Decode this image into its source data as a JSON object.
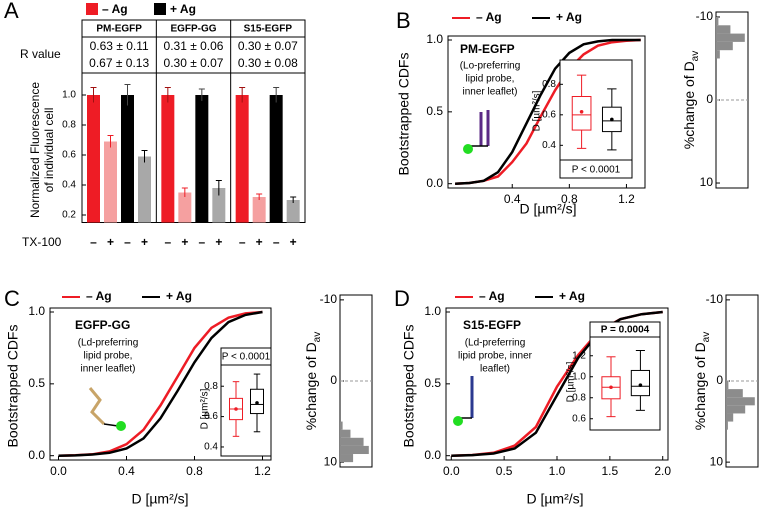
{
  "chart_data": [
    {
      "type": "bar",
      "panel": "A",
      "categories": [
        "PM-EGFP",
        "EGFP-GG",
        "S15-EGFP"
      ],
      "r_label": "R value",
      "ylabel": [
        "Normalized Fluorescence",
        "of individual cell"
      ],
      "tx_label": "TX-100",
      "tx_signs": [
        "–",
        "+"
      ],
      "ylim": [
        0.15,
        1.1
      ],
      "yticks": [
        0.2,
        0.4,
        0.6,
        0.8,
        {
          "value": 1,
          "label": "1.0"
        }
      ],
      "series": [
        {
          "name": "– Ag",
          "color": "#ee1c25",
          "tx_color": "#f5a0a0",
          "values": [
            [
              1.0,
              0.69
            ],
            [
              1.0,
              0.35
            ],
            [
              1.0,
              0.32
            ]
          ],
          "errors": [
            [
              0.05,
              0.04
            ],
            [
              0.05,
              0.03
            ],
            [
              0.05,
              0.02
            ]
          ],
          "r_values": [
            "0.63 ± 0.11",
            "0.31 ± 0.06",
            "0.30 ± 0.07"
          ]
        },
        {
          "name": "+ Ag",
          "color": "#000000",
          "tx_color": "#a8a8a8",
          "values": [
            [
              1.0,
              0.59
            ],
            [
              1.0,
              0.38
            ],
            [
              1.0,
              0.3
            ]
          ],
          "errors": [
            [
              0.07,
              0.04
            ],
            [
              0.04,
              0.05
            ],
            [
              0.05,
              0.02
            ]
          ],
          "r_values": [
            "0.67 ± 0.13",
            "0.30 ± 0.07",
            "0.30 ± 0.08"
          ]
        }
      ]
    },
    {
      "type": "line",
      "panel": "B",
      "title": "PM-EGFP",
      "annotation": [
        "(Lo-preferring",
        "lipid probe,",
        "inner leaflet)"
      ],
      "xlabel": "D [µm²/s]",
      "ylabel": "Bootstrapped CDFs",
      "xlim": [
        -0.05,
        1.33
      ],
      "xticks": [
        0.4,
        0.8,
        1.2
      ],
      "ylim": [
        -0.03,
        1.0
      ],
      "yticks": [
        {
          "value": 0,
          "label": "0.0"
        },
        0.5,
        {
          "value": 1,
          "label": "1.0"
        }
      ],
      "x": [
        0,
        0.1,
        0.2,
        0.3,
        0.4,
        0.5,
        0.6,
        0.7,
        0.8,
        0.9,
        1.0,
        1.1,
        1.2,
        1.3
      ],
      "series": [
        {
          "name": "– Ag",
          "color": "#ee1c25",
          "values": [
            0,
            0.005,
            0.02,
            0.05,
            0.15,
            0.28,
            0.47,
            0.65,
            0.8,
            0.9,
            0.96,
            0.985,
            0.995,
            1.0
          ]
        },
        {
          "name": "+ Ag",
          "color": "#000000",
          "values": [
            0,
            0.005,
            0.02,
            0.08,
            0.22,
            0.42,
            0.62,
            0.8,
            0.91,
            0.97,
            0.99,
            1.0,
            1.0,
            1.0
          ]
        }
      ],
      "inset": {
        "ylabel": "D [µm²/s]",
        "ylim": [
          0.33,
          0.92
        ],
        "yticks": [
          0.4,
          0.6,
          0.8
        ],
        "p_text": "P < 0.0001",
        "boxes": [
          {
            "color": "#ee1c25",
            "whislo": 0.38,
            "q1": 0.5,
            "med": 0.6,
            "q3": 0.72,
            "whishi": 0.86,
            "mean": 0.62
          },
          {
            "color": "#000000",
            "whislo": 0.37,
            "q1": 0.49,
            "med": 0.56,
            "q3": 0.65,
            "whishi": 0.77,
            "mean": 0.57
          }
        ]
      },
      "side": {
        "ylabel": "%change of D",
        "ylabel_sub": "av",
        "ylim": [
          -10.6,
          10.6
        ],
        "yticks": [
          -10,
          0,
          10
        ],
        "bins": [
          -10,
          -9,
          -8,
          -7,
          -6,
          -5
        ],
        "counts": [
          5,
          30,
          60,
          35,
          8
        ],
        "color": "#8c8c8c"
      }
    },
    {
      "type": "line",
      "panel": "C",
      "title": "EGFP-GG",
      "annotation": [
        "(Ld-preferring",
        "lipid probe,",
        "inner leaflet)"
      ],
      "xlabel": "D [µm²/s]",
      "ylabel": "Bootstrapped CDFs",
      "xlim": [
        -0.05,
        1.25
      ],
      "xticks": [
        {
          "value": 0,
          "label": "0.0"
        },
        0.4,
        0.8,
        1.2
      ],
      "ylim": [
        -0.03,
        1.0
      ],
      "yticks": [
        {
          "value": 0,
          "label": "0.0"
        },
        0.5,
        {
          "value": 1,
          "label": "1.0"
        }
      ],
      "x": [
        0,
        0.1,
        0.2,
        0.3,
        0.4,
        0.5,
        0.6,
        0.7,
        0.8,
        0.9,
        1.0,
        1.1,
        1.2
      ],
      "series": [
        {
          "name": "– Ag",
          "color": "#ee1c25",
          "values": [
            0,
            0.003,
            0.01,
            0.03,
            0.08,
            0.18,
            0.35,
            0.55,
            0.75,
            0.89,
            0.96,
            0.99,
            1.0
          ]
        },
        {
          "name": "+ Ag",
          "color": "#000000",
          "values": [
            0,
            0.002,
            0.008,
            0.02,
            0.05,
            0.12,
            0.26,
            0.45,
            0.65,
            0.82,
            0.93,
            0.98,
            1.0
          ]
        }
      ],
      "inset": {
        "ylabel": "D [µm²/s]",
        "ylim": [
          0.38,
          0.92
        ],
        "yticks": [
          0.4,
          0.6,
          0.8
        ],
        "p_text": "P < 0.0001",
        "boxes": [
          {
            "color": "#ee1c25",
            "whislo": 0.47,
            "q1": 0.58,
            "med": 0.65,
            "q3": 0.72,
            "whishi": 0.83,
            "mean": 0.65
          },
          {
            "color": "#000000",
            "whislo": 0.5,
            "q1": 0.62,
            "med": 0.68,
            "q3": 0.78,
            "whishi": 0.88,
            "mean": 0.69
          }
        ]
      },
      "side": {
        "ylabel": "%change of D",
        "ylabel_sub": "av",
        "ylim": [
          -10.6,
          10.6
        ],
        "yticks": [
          -10,
          0,
          10
        ],
        "bins": [
          5,
          6,
          7,
          8,
          9,
          10
        ],
        "counts": [
          5,
          20,
          45,
          55,
          25
        ],
        "color": "#8c8c8c"
      }
    },
    {
      "type": "line",
      "panel": "D",
      "title": "S15-EGFP",
      "annotation": [
        "(Ld-preferring",
        "lipid probe, inner",
        "leaflet)"
      ],
      "xlabel": "D [µm²/s]",
      "ylabel": "Bootstrapped CDFs",
      "xlim": [
        -0.05,
        2.05
      ],
      "xticks": [
        {
          "value": 0,
          "label": "0.0"
        },
        0.5,
        {
          "value": 1,
          "label": "1.0"
        },
        1.5,
        {
          "value": 2,
          "label": "2.0"
        }
      ],
      "ylim": [
        -0.03,
        1.0
      ],
      "yticks": [
        {
          "value": 0,
          "label": "0.0"
        },
        0.5,
        {
          "value": 1,
          "label": "1.0"
        }
      ],
      "x": [
        0,
        0.2,
        0.4,
        0.6,
        0.8,
        1.0,
        1.2,
        1.4,
        1.6,
        1.8,
        2.0
      ],
      "series": [
        {
          "name": "– Ag",
          "color": "#ee1c25",
          "values": [
            0,
            0.005,
            0.02,
            0.07,
            0.2,
            0.48,
            0.7,
            0.87,
            0.95,
            0.985,
            1.0
          ]
        },
        {
          "name": "+ Ag",
          "color": "#000000",
          "values": [
            0,
            0.004,
            0.015,
            0.05,
            0.16,
            0.42,
            0.68,
            0.86,
            0.95,
            0.985,
            1.0
          ]
        }
      ],
      "inset": {
        "ylabel": "D [µm²/s]",
        "ylim": [
          0.55,
          1.35
        ],
        "yticks": [
          0.6,
          0.8,
          {
            "value": 1,
            "label": "1.0"
          },
          1.2
        ],
        "p_text": "P = 0.0004",
        "boxes": [
          {
            "color": "#ee1c25",
            "whislo": 0.62,
            "q1": 0.79,
            "med": 0.9,
            "q3": 1.0,
            "whishi": 1.19,
            "mean": 0.9
          },
          {
            "color": "#000000",
            "whislo": 0.68,
            "q1": 0.82,
            "med": 0.91,
            "q3": 1.06,
            "whishi": 1.25,
            "mean": 0.92
          }
        ]
      },
      "side": {
        "ylabel": "%change of D",
        "ylabel_sub": "av",
        "ylim": [
          -10.6,
          10.6
        ],
        "yticks": [
          -10,
          0,
          10
        ],
        "bins": [
          0,
          1,
          2,
          3,
          4,
          5,
          6
        ],
        "counts": [
          5,
          35,
          60,
          40,
          15,
          4
        ],
        "color": "#8c8c8c"
      }
    }
  ]
}
